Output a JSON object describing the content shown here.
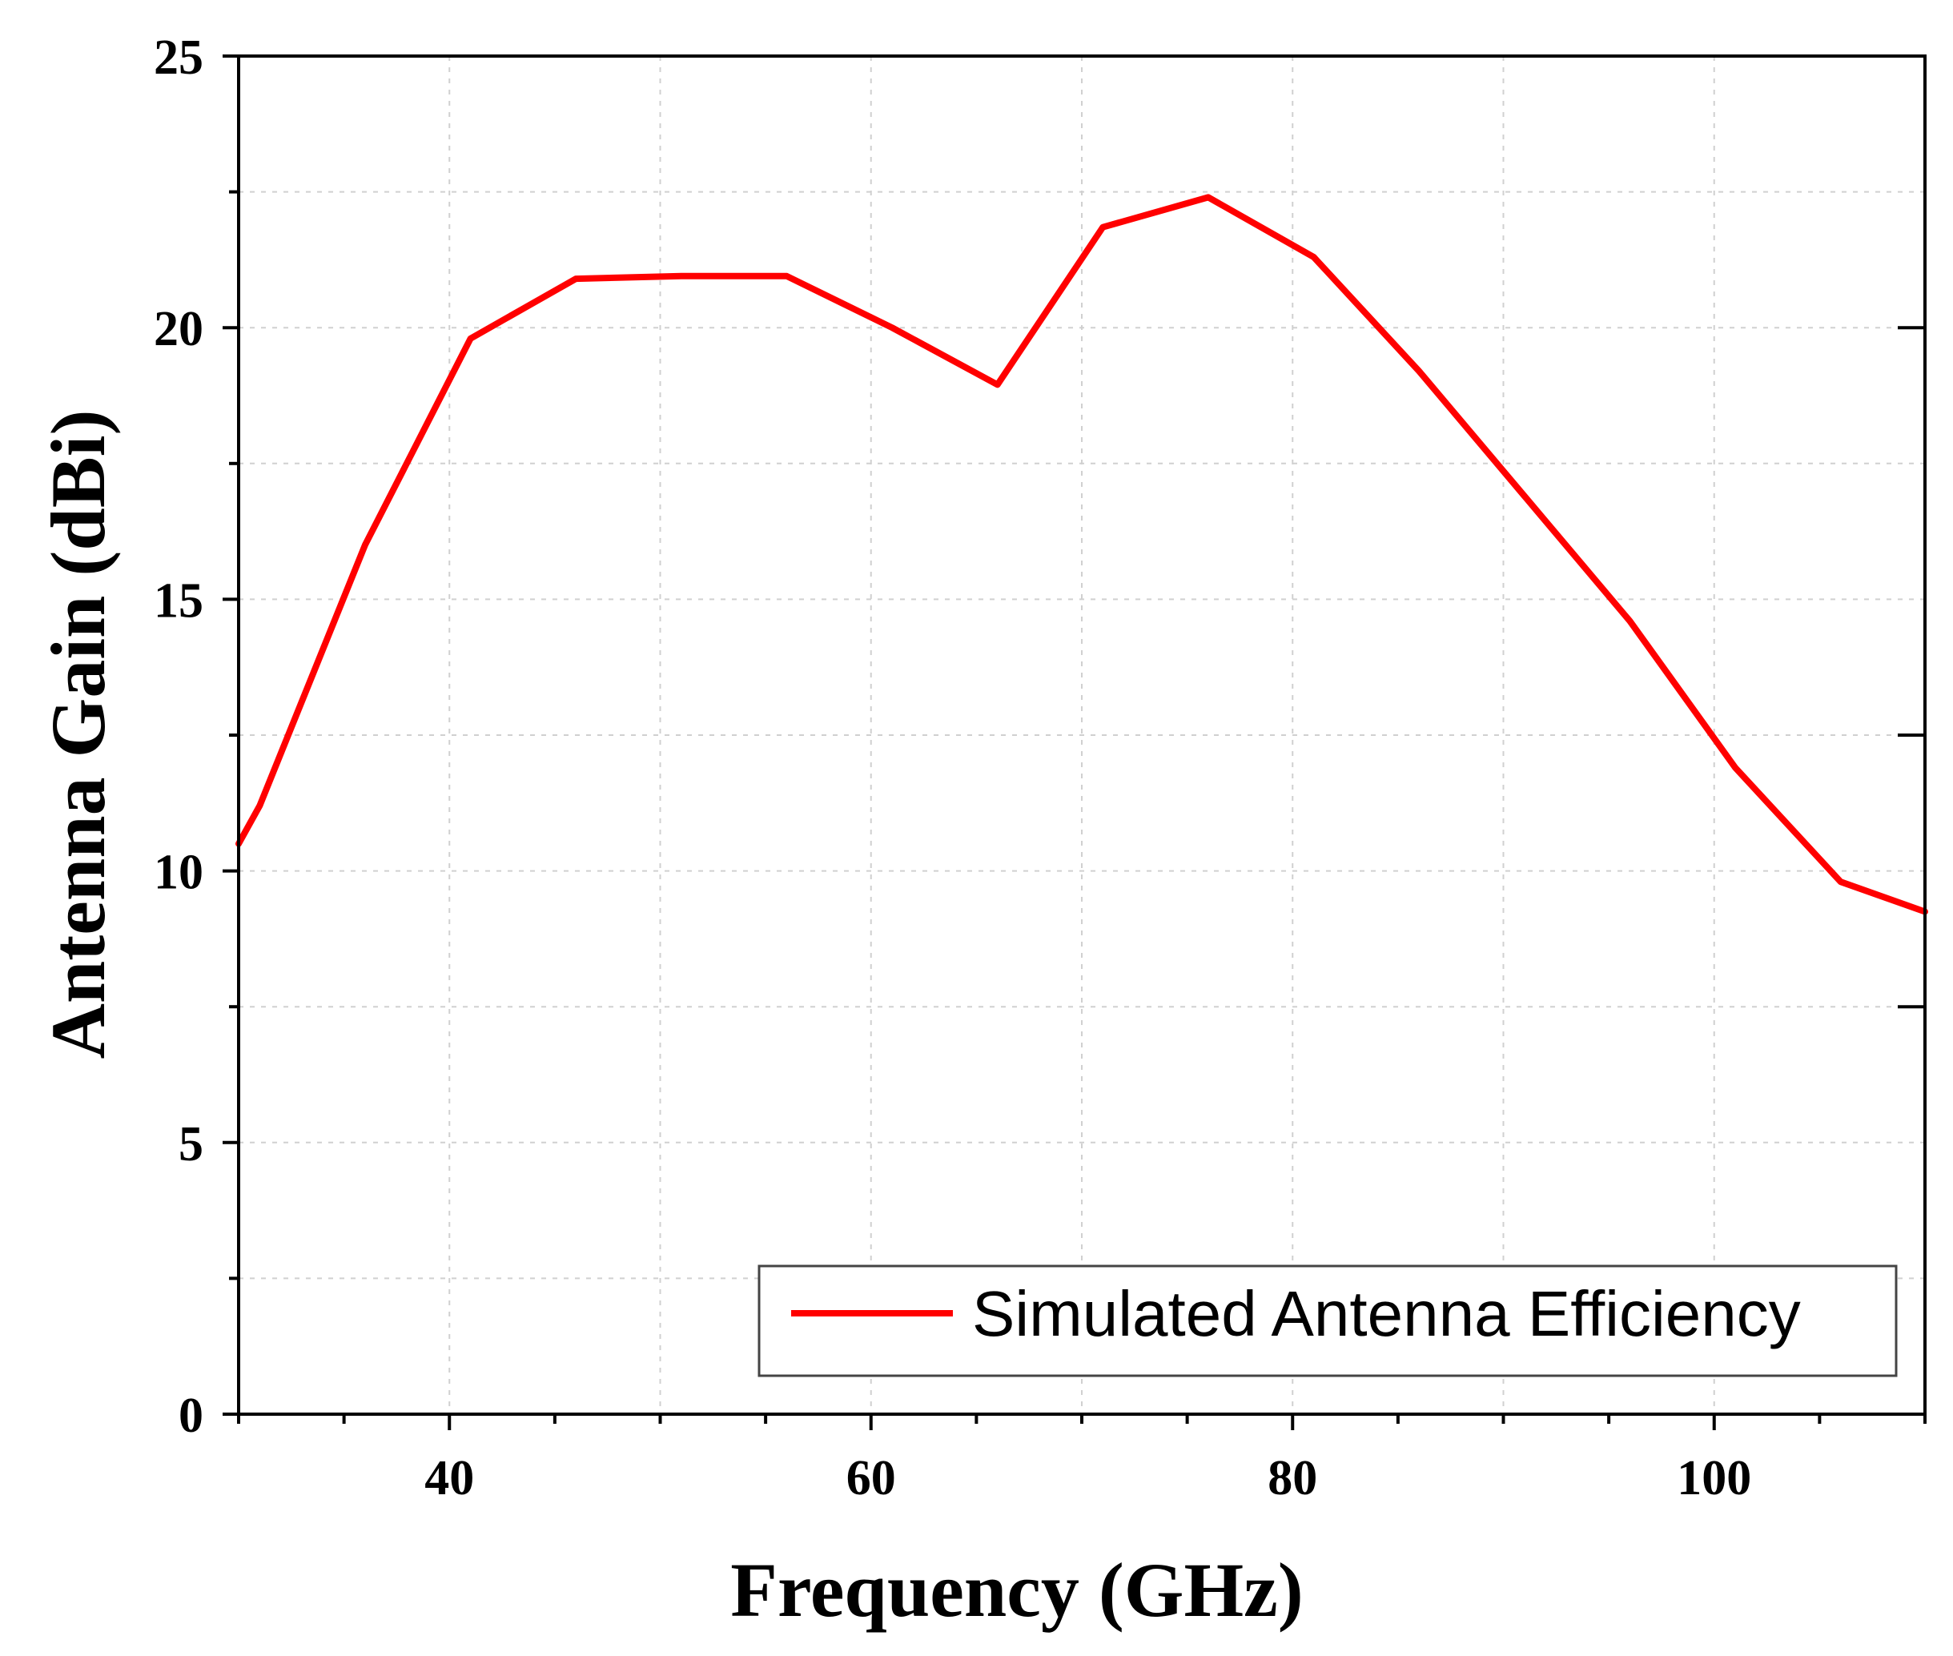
{
  "chart_data": {
    "type": "line",
    "title": "",
    "xlabel": "Frequency (GHz)",
    "ylabel": "Antenna Gain (dBi)",
    "xlim": [
      30,
      110
    ],
    "ylim": [
      0,
      25
    ],
    "xticks": [
      40,
      60,
      80,
      100
    ],
    "yticks": [
      0,
      5,
      10,
      15,
      20,
      25
    ],
    "x_minor_step": 5,
    "y_minor_step": 2.5,
    "grid": true,
    "legend_position": "bottom-right",
    "series": [
      {
        "name": "Simulated Antenna Efficiency",
        "color": "#ff0000",
        "x": [
          30,
          31,
          36,
          41,
          46,
          51,
          56,
          61,
          66,
          71,
          76,
          81,
          86,
          91,
          96,
          101,
          106,
          110
        ],
        "y": [
          10.5,
          11.2,
          16.0,
          19.8,
          20.9,
          20.95,
          20.95,
          20.0,
          18.95,
          21.85,
          22.4,
          21.3,
          19.2,
          16.9,
          14.6,
          11.9,
          9.8,
          9.25
        ]
      }
    ]
  }
}
